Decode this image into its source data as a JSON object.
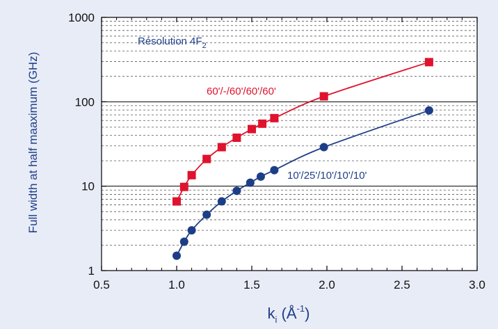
{
  "chart_data": {
    "type": "scatter",
    "title": "",
    "xlabel": {
      "base": "k",
      "sub": "i",
      "unit_open": " (Å",
      "sup": "-1",
      "unit_close": ")"
    },
    "ylabel": "Full width at half maaximum (GHz)",
    "xlim": [
      0.5,
      3.0
    ],
    "ylim": [
      1,
      1000
    ],
    "yscale": "log",
    "grid": "horizontal-minor-and-major",
    "legend": "none",
    "x_ticks": [
      "0.5",
      "1.0",
      "1.5",
      "2.0",
      "2.5",
      "3.0"
    ],
    "y_ticks": [
      "1",
      "10",
      "100",
      "1000"
    ],
    "annotations": {
      "resolution": {
        "text": "Résolution 4F",
        "sub": "2"
      }
    },
    "series": [
      {
        "label": "60'/-/60'/60'/60'",
        "marker": "square",
        "color": "#e0122d",
        "x": [
          1.0,
          1.05,
          1.1,
          1.2,
          1.3,
          1.4,
          1.5,
          1.57,
          1.65,
          1.98,
          2.68
        ],
        "y": [
          6.6,
          9.8,
          13.5,
          21,
          29,
          37.5,
          47.5,
          55,
          64,
          116,
          295
        ]
      },
      {
        "label": "10'/25'/10'/10'/10'",
        "marker": "circle",
        "color": "#1c3e87",
        "x": [
          1.0,
          1.05,
          1.1,
          1.2,
          1.3,
          1.4,
          1.49,
          1.56,
          1.65,
          1.98,
          2.68
        ],
        "y": [
          1.5,
          2.2,
          3.0,
          4.6,
          6.6,
          8.8,
          11,
          13,
          15.5,
          29,
          79
        ]
      }
    ]
  }
}
